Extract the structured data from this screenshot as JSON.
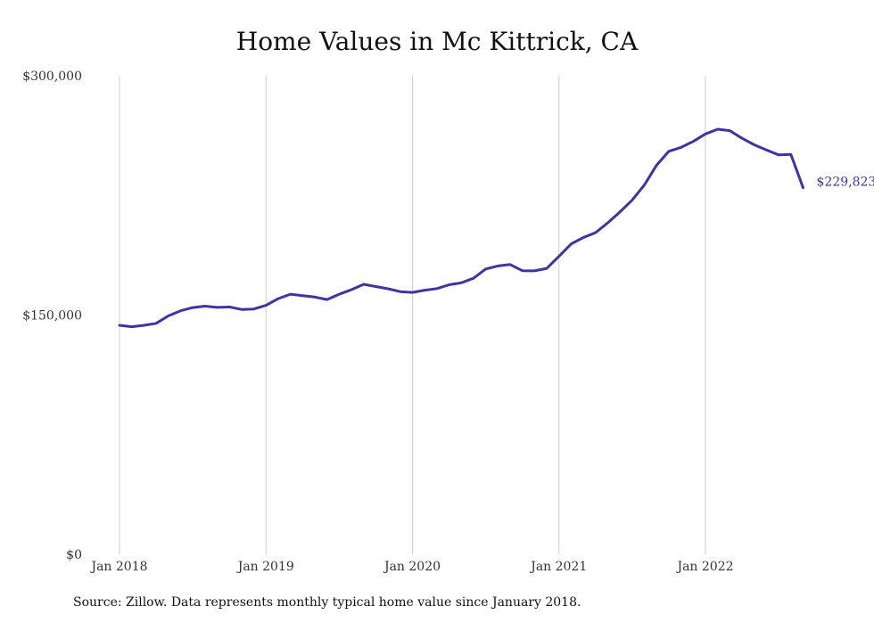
{
  "chart_data": {
    "type": "line",
    "title": "Home Values in Mc Kittrick, CA",
    "xlabel": "",
    "ylabel": "",
    "ylim": [
      0,
      300000
    ],
    "yticks": [
      "$300,000",
      "$150,000",
      "$0"
    ],
    "ytick_values": [
      300000,
      150000,
      0
    ],
    "xticks": [
      "Jan 2018",
      "Jan 2019",
      "Jan 2020",
      "Jan 2021",
      "Jan 2022"
    ],
    "x_start": "2018-01",
    "grid": "vertical",
    "line_color": "#3d35a0",
    "end_label": "$229,823",
    "series": [
      {
        "values": [
          143600,
          142700,
          143600,
          144800,
          149500,
          152700,
          154700,
          155600,
          154800,
          155100,
          153500,
          153800,
          156100,
          160300,
          163100,
          162100,
          161300,
          159700,
          163100,
          165900,
          169300,
          167900,
          166500,
          164700,
          164200,
          165600,
          166600,
          169000,
          170200,
          173100,
          178900,
          180800,
          181700,
          177800,
          177700,
          179300,
          186800,
          194600,
          198600,
          201700,
          207800,
          214700,
          222100,
          231600,
          244000,
          252600,
          255100,
          258800,
          263500,
          266500,
          265600,
          260800,
          256700,
          253500,
          250400,
          250700,
          229823
        ]
      }
    ],
    "source": "Source: Zillow. Data represents monthly typical home value since January 2018."
  }
}
